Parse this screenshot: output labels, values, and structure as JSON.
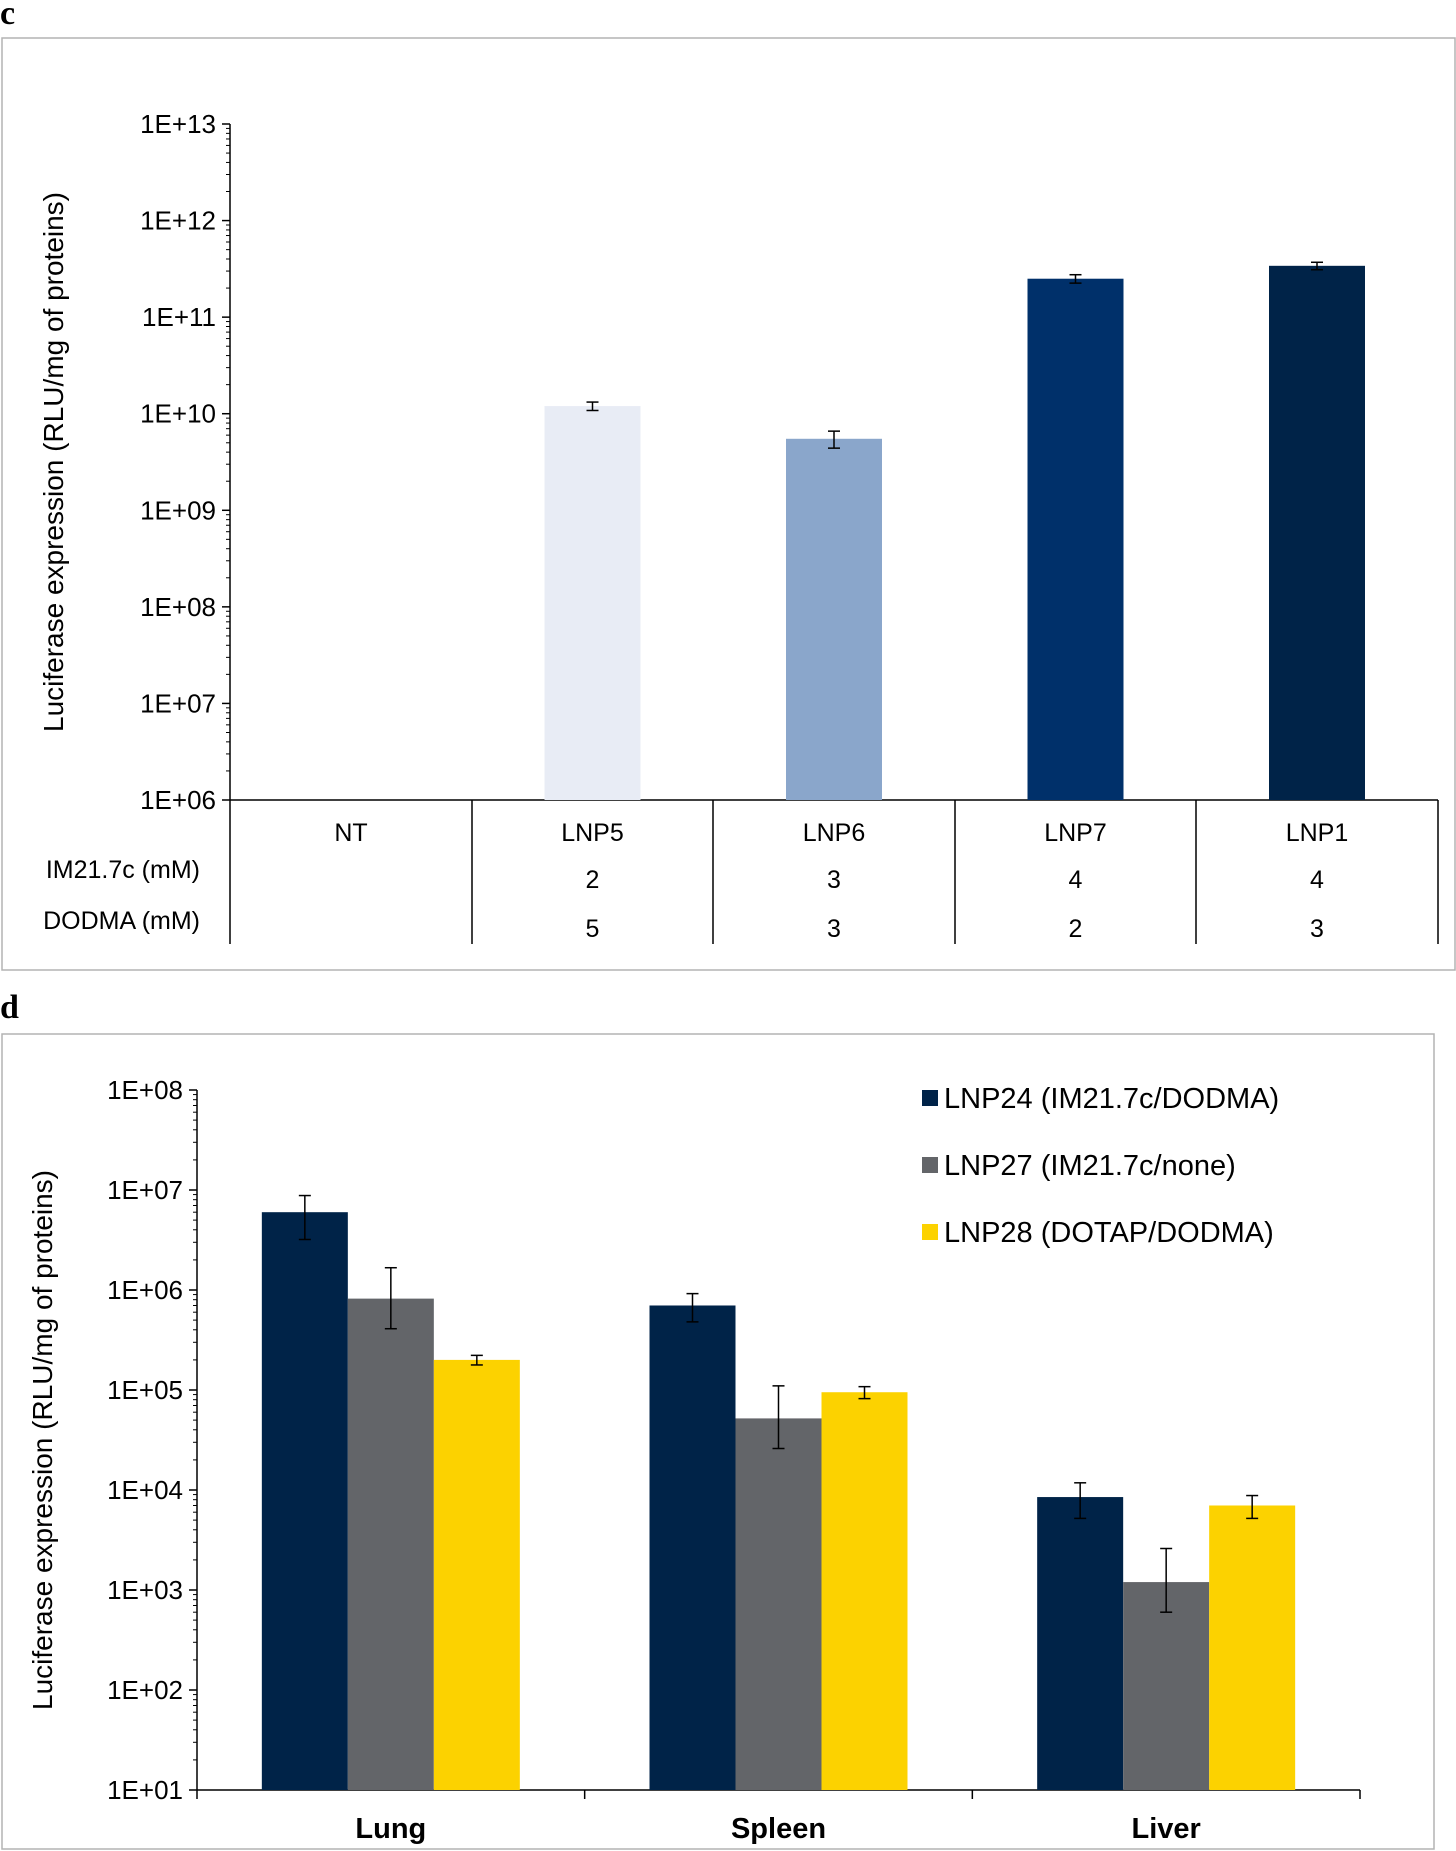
{
  "chart_data": [
    {
      "panel": "c",
      "type": "bar",
      "scale": "log",
      "ylabel": "Luciferase expression (RLU/mg of proteins)",
      "y_ticks": [
        "1E+06",
        "1E+07",
        "1E+08",
        "1E+09",
        "1E+10",
        "1E+11",
        "1E+12",
        "1E+13"
      ],
      "ylim_exp": [
        6,
        13
      ],
      "categories": [
        "NT",
        "LNP5",
        "LNP6",
        "LNP7",
        "LNP1"
      ],
      "values": [
        null,
        12000000000.0,
        5500000000.0,
        250000000000.0,
        340000000000.0
      ],
      "errors": [
        null,
        1200000000.0,
        1100000000.0,
        25000000000.0,
        30000000000.0
      ],
      "colors": [
        null,
        "#e8ecf5",
        "#8aa6cb",
        "#00306a",
        "#002348"
      ],
      "table_rows": [
        {
          "label": "IM21.7c (mM)",
          "values": [
            "",
            "2",
            "3",
            "4",
            "4"
          ]
        },
        {
          "label": "DODMA (mM)",
          "values": [
            "",
            "5",
            "3",
            "2",
            "3"
          ]
        }
      ]
    },
    {
      "panel": "d",
      "type": "bar",
      "scale": "log",
      "ylabel": "Luciferase expression (RLU/mg of proteins)",
      "y_ticks": [
        "1E+01",
        "1E+02",
        "1E+03",
        "1E+04",
        "1E+05",
        "1E+06",
        "1E+07",
        "1E+08"
      ],
      "ylim_exp": [
        1,
        8
      ],
      "categories": [
        "Lung",
        "Spleen",
        "Liver"
      ],
      "series": [
        {
          "name": "LNP24 (IM21.7c/DODMA)",
          "color": "#002348",
          "values": [
            6000000.0,
            700000.0,
            8500.0
          ],
          "errors": [
            2800000.0,
            220000.0,
            3300.0
          ]
        },
        {
          "name": "LNP27 (IM21.7c/none)",
          "color": "#636569",
          "values": [
            820000.0,
            52000.0,
            1200.0
          ],
          "errors": [
            850000.0,
            58000.0,
            1400.0
          ]
        },
        {
          "name": "LNP28 (DOTAP/DODMA)",
          "color": "#fcd200",
          "values": [
            200000.0,
            95000.0,
            7000.0
          ],
          "errors": [
            22000.0,
            13000.0,
            1800.0
          ]
        }
      ]
    }
  ],
  "panel_labels": {
    "c": "c",
    "d": "d"
  }
}
